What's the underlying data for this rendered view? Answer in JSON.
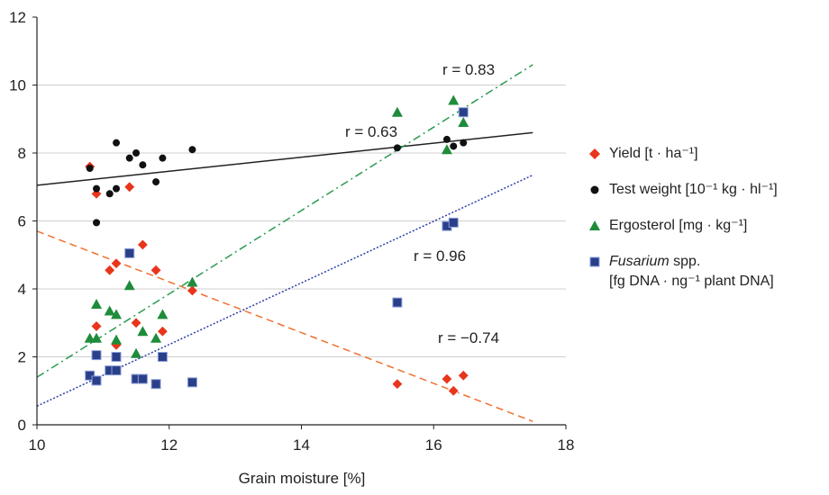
{
  "chart_data": {
    "type": "scatter",
    "title": "",
    "xlabel": "Grain moisture [%]",
    "ylabel": "",
    "xlim": [
      10,
      18
    ],
    "ylim": [
      0,
      12
    ],
    "xticks": [
      "10",
      "12",
      "14",
      "16",
      "18"
    ],
    "yticks": [
      "0",
      "2",
      "4",
      "6",
      "8",
      "10",
      "12"
    ],
    "grid": "horizontal",
    "legend_position": "right",
    "series": [
      {
        "name": "Yield [t · ha⁻¹]",
        "marker": "diamond",
        "color": "#e8361c",
        "points": [
          [
            10.8,
            7.6
          ],
          [
            10.9,
            6.8
          ],
          [
            11.4,
            7.0
          ],
          [
            10.9,
            2.9
          ],
          [
            11.1,
            4.55
          ],
          [
            11.2,
            4.75
          ],
          [
            11.6,
            5.3
          ],
          [
            11.8,
            4.55
          ],
          [
            11.5,
            3.0
          ],
          [
            11.2,
            2.35
          ],
          [
            11.9,
            2.75
          ],
          [
            12.35,
            3.95
          ],
          [
            15.45,
            1.2
          ],
          [
            16.2,
            1.35
          ],
          [
            16.3,
            1.0
          ],
          [
            16.45,
            1.45
          ]
        ],
        "trendline": {
          "x": [
            10,
            17.5
          ],
          "y": [
            5.7,
            0.1
          ],
          "style": "dashed",
          "color": "#f07030"
        },
        "r_label": "r = −0.74"
      },
      {
        "name": "Test weight [10⁻¹ kg · hl⁻¹]",
        "marker": "circle",
        "color": "#111111",
        "points": [
          [
            10.9,
            5.95
          ],
          [
            10.9,
            6.95
          ],
          [
            11.1,
            6.8
          ],
          [
            11.2,
            6.95
          ],
          [
            11.2,
            8.3
          ],
          [
            11.4,
            7.85
          ],
          [
            11.5,
            8.0
          ],
          [
            11.6,
            7.65
          ],
          [
            11.8,
            7.15
          ],
          [
            11.9,
            7.85
          ],
          [
            12.35,
            8.1
          ],
          [
            10.8,
            7.55
          ],
          [
            15.45,
            8.15
          ],
          [
            16.2,
            8.4
          ],
          [
            16.3,
            8.2
          ],
          [
            16.45,
            8.3
          ]
        ],
        "trendline": {
          "x": [
            10,
            17.5
          ],
          "y": [
            7.05,
            8.6
          ],
          "style": "solid",
          "color": "#222222"
        },
        "r_label": "r = 0.63"
      },
      {
        "name": "Ergosterol [mg · kg⁻¹]",
        "marker": "triangle",
        "color": "#1e8c3a",
        "points": [
          [
            10.8,
            2.55
          ],
          [
            10.9,
            2.55
          ],
          [
            10.9,
            3.55
          ],
          [
            11.1,
            3.35
          ],
          [
            11.2,
            3.25
          ],
          [
            11.2,
            2.5
          ],
          [
            11.4,
            4.1
          ],
          [
            11.5,
            2.1
          ],
          [
            11.6,
            2.75
          ],
          [
            11.8,
            2.55
          ],
          [
            11.9,
            3.25
          ],
          [
            12.35,
            4.2
          ],
          [
            15.45,
            9.2
          ],
          [
            16.2,
            8.1
          ],
          [
            16.3,
            9.55
          ],
          [
            16.45,
            8.9
          ]
        ],
        "trendline": {
          "x": [
            10,
            17.5
          ],
          "y": [
            1.4,
            10.6
          ],
          "style": "dashdot",
          "color": "#2a9a50"
        },
        "r_label": "r = 0.96"
      },
      {
        "name": "Fusarium spp. [fg DNA · ng⁻¹ plant DNA]",
        "marker": "square",
        "color": "#2a3f8a",
        "points": [
          [
            10.8,
            1.45
          ],
          [
            10.9,
            2.05
          ],
          [
            10.9,
            1.3
          ],
          [
            11.1,
            1.6
          ],
          [
            11.2,
            1.6
          ],
          [
            11.2,
            2.0
          ],
          [
            11.4,
            5.05
          ],
          [
            11.5,
            1.35
          ],
          [
            11.6,
            1.35
          ],
          [
            11.8,
            1.2
          ],
          [
            11.9,
            2.0
          ],
          [
            12.35,
            1.25
          ],
          [
            15.45,
            3.6
          ],
          [
            16.2,
            5.85
          ],
          [
            16.3,
            5.95
          ],
          [
            16.45,
            9.2
          ]
        ],
        "trendline": {
          "x": [
            10,
            17.5
          ],
          "y": [
            0.55,
            7.35
          ],
          "style": "dotted",
          "color": "#2b3fa8"
        },
        "r_label": "r = 0.83"
      }
    ],
    "annotations": [
      "r = 0.96",
      "r = 0.63",
      "r = 0.83",
      "r = −0.74"
    ]
  },
  "legend": {
    "yield": "Yield [t · ha⁻¹]",
    "test_weight": "Test weight [10⁻¹ kg · hl⁻¹]",
    "ergosterol": "Ergosterol [mg · kg⁻¹]",
    "fusarium_italic": "Fusarium",
    "fusarium_rest": " spp.",
    "fusarium_sub": "[fg DNA · ng⁻¹ plant DNA]"
  },
  "colors": {
    "yield": "#e8361c",
    "test_weight": "#111111",
    "ergosterol": "#1e8c3a",
    "fusarium": "#2a3f8a",
    "grid": "#cfcfcf"
  }
}
